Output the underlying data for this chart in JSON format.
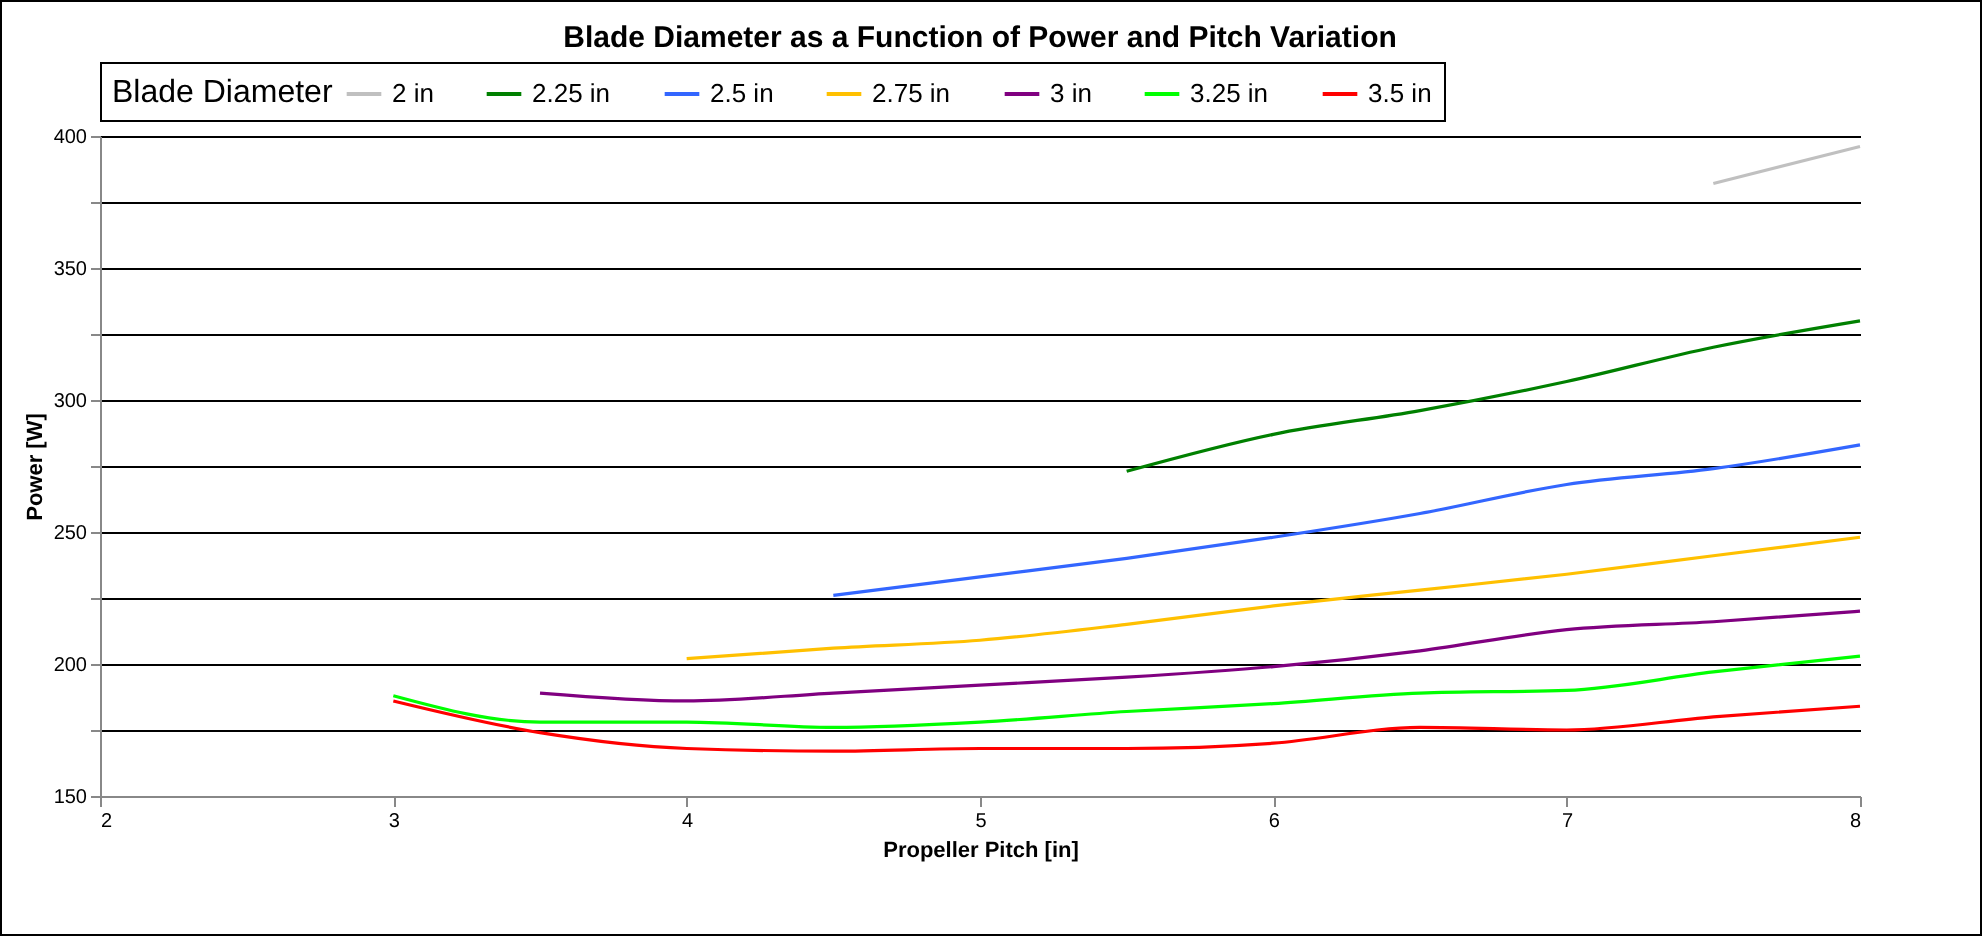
{
  "chart_data": {
    "type": "line",
    "title": "Blade Diameter as a Function of Power and Pitch Variation",
    "xlabel": "Propeller Pitch [in]",
    "ylabel": "Power [W]",
    "legend_title": "Blade Diameter",
    "legend": "top",
    "grid": "y",
    "line_style": "solid",
    "marker": "none",
    "xlim": [
      2,
      8
    ],
    "xticks": [
      2,
      3,
      4,
      5,
      6,
      7,
      8
    ],
    "ylim": [
      150,
      400
    ],
    "yticks": [
      150,
      {
        "value": 175,
        "label": null
      },
      200,
      {
        "value": 225,
        "label": null
      },
      250,
      {
        "value": 275,
        "label": null
      },
      300,
      {
        "value": 325,
        "label": null
      },
      350,
      {
        "value": 375,
        "label": null
      },
      400
    ],
    "series": [
      {
        "name": "2 in",
        "color": "#c0c0c0",
        "x": [
          7.5,
          8
        ],
        "values": [
          382,
          396
        ]
      },
      {
        "name": "2.25 in",
        "color": "#008000",
        "x": [
          5.5,
          6,
          6.5,
          7,
          7.5,
          8
        ],
        "values": [
          273,
          287,
          296,
          307,
          320,
          330
        ]
      },
      {
        "name": "2.5 in",
        "color": "#3366ff",
        "x": [
          4.5,
          5,
          5.5,
          6,
          6.5,
          7,
          7.5,
          8
        ],
        "values": [
          226,
          233,
          240,
          248,
          257,
          268,
          274,
          283
        ]
      },
      {
        "name": "2.75 in",
        "color": "#ffc000",
        "x": [
          4,
          4.5,
          5,
          5.5,
          6,
          6.5,
          7,
          7.5,
          8
        ],
        "values": [
          202,
          206,
          209,
          215,
          222,
          228,
          234,
          241,
          248
        ]
      },
      {
        "name": "3 in",
        "color": "#800080",
        "x": [
          3.5,
          4,
          4.5,
          5,
          5.5,
          6,
          6.5,
          7,
          7.5,
          8
        ],
        "values": [
          189,
          186,
          189,
          192,
          195,
          199,
          205,
          213,
          216,
          220
        ]
      },
      {
        "name": "3.25 in",
        "color": "#00ff00",
        "x": [
          3,
          3.5,
          4,
          4.5,
          5,
          5.5,
          6,
          6.5,
          7,
          7.5,
          8
        ],
        "values": [
          188,
          178,
          178,
          176,
          178,
          182,
          185,
          189,
          190,
          197,
          203
        ]
      },
      {
        "name": "3.5 in",
        "color": "#ff0000",
        "x": [
          3,
          3.5,
          4,
          4.5,
          5,
          5.5,
          6,
          6.5,
          7,
          7.5,
          8
        ],
        "values": [
          186,
          174,
          168,
          167,
          168,
          168,
          170,
          176,
          175,
          180,
          184
        ]
      }
    ]
  }
}
